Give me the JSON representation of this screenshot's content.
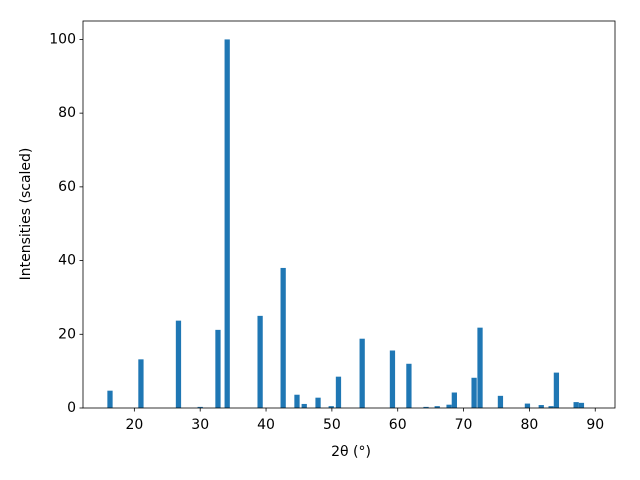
{
  "chart_data": {
    "type": "bar",
    "xlabel": "2θ (°)",
    "ylabel": "Intensities (scaled)",
    "x": [
      16.3,
      21.0,
      26.7,
      30.0,
      32.7,
      34.1,
      39.1,
      42.6,
      44.7,
      45.8,
      47.9,
      49.9,
      51.0,
      54.6,
      59.2,
      61.7,
      64.3,
      66.0,
      67.8,
      68.6,
      71.6,
      72.5,
      75.6,
      79.7,
      81.8,
      83.3,
      84.1,
      87.1,
      87.9
    ],
    "values": [
      4.7,
      13.2,
      23.7,
      0.3,
      21.2,
      100,
      25.0,
      38.0,
      3.6,
      1.1,
      2.8,
      0.5,
      8.5,
      18.8,
      15.6,
      12.0,
      0.3,
      0.5,
      0.9,
      4.2,
      8.2,
      21.8,
      3.3,
      1.2,
      0.8,
      0.5,
      9.6,
      1.6,
      1.4
    ],
    "bar_width": 0.8,
    "color": "#1f77b4",
    "xlim": [
      12.2,
      93.0
    ],
    "xticks": [
      20,
      30,
      40,
      50,
      60,
      70,
      80,
      90
    ],
    "ylim": [
      0,
      105
    ],
    "yticks": [
      0,
      20,
      40,
      60,
      80,
      100
    ],
    "grid": false
  }
}
